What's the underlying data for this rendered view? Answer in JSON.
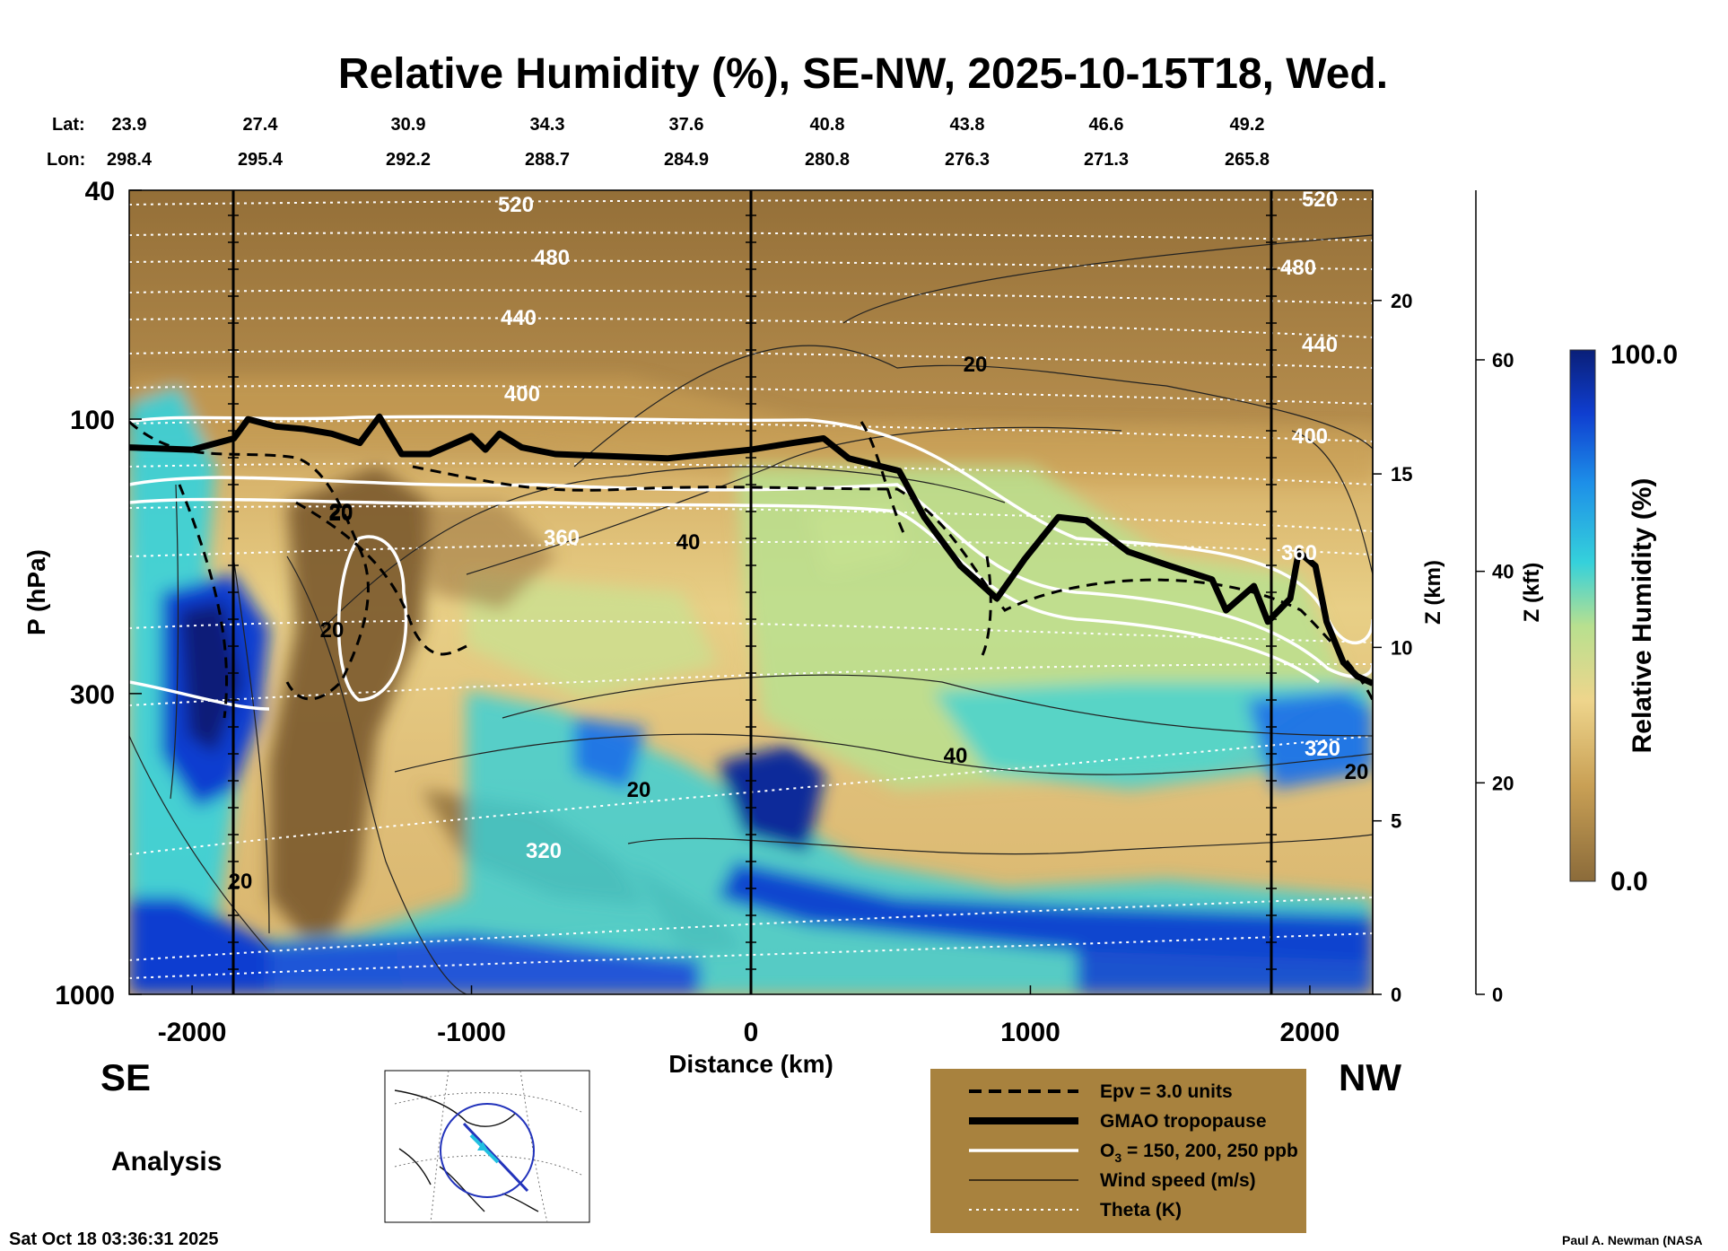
{
  "chart_data": {
    "type": "heatmap",
    "title": "Relative Humidity (%), SE-NW, 2025-10-15T18, Wed.",
    "xlabel": "Distance (km)",
    "ylabel": "P (hPa)",
    "x_ticks": [
      -2000,
      -1000,
      0,
      1000,
      2000
    ],
    "x_range": [
      -2225,
      2225
    ],
    "y_range_hpa": [
      1000,
      40
    ],
    "y_ticks": [
      40,
      100,
      300,
      1000
    ],
    "z_km_label": "Z (km)",
    "z_km_ticks": [
      0,
      5,
      10,
      15,
      20
    ],
    "z_kft_label": "Z (kft)",
    "z_kft_ticks": [
      0,
      20,
      40,
      60
    ],
    "lat_label": "Lat:",
    "lon_label": "Lon:",
    "lat_values": [
      "23.9",
      "27.4",
      "30.9",
      "34.3",
      "37.6",
      "40.8",
      "43.8",
      "46.6",
      "49.2"
    ],
    "lon_values": [
      "298.4",
      "295.4",
      "292.2",
      "288.7",
      "284.9",
      "280.8",
      "276.3",
      "271.3",
      "265.8"
    ],
    "section_left_label": "SE",
    "section_right_label": "NW",
    "colorbar": {
      "label": "Relative Humidity (%)",
      "max": "100.0",
      "min": "0.0"
    },
    "theta_labels": [
      "520",
      "480",
      "440",
      "400",
      "360",
      "320",
      "520",
      "480",
      "440",
      "400",
      "360",
      "320"
    ],
    "wind_labels": [
      "20",
      "40",
      "20",
      "20",
      "20",
      "40",
      "20",
      "20",
      "20"
    ],
    "legend": [
      {
        "style": "dashed",
        "label": "Epv = 3.0 units"
      },
      {
        "style": "thick",
        "label": "GMAO tropopause"
      },
      {
        "style": "white",
        "label": "O",
        "sub": "3",
        "suffix": " = 150, 200, 250 ppb"
      },
      {
        "style": "thin",
        "label": "Wind speed (m/s)"
      },
      {
        "style": "dotted",
        "label": "Theta (K)"
      }
    ],
    "tropopause_hpa": [
      [
        -2225,
        112
      ],
      [
        -2000,
        113
      ],
      [
        -1850,
        108
      ],
      [
        -1800,
        100
      ],
      [
        -1700,
        103
      ],
      [
        -1600,
        104
      ],
      [
        -1500,
        106
      ],
      [
        -1400,
        110
      ],
      [
        -1330,
        99
      ],
      [
        -1250,
        115
      ],
      [
        -1150,
        115
      ],
      [
        -1000,
        107
      ],
      [
        -950,
        113
      ],
      [
        -900,
        106
      ],
      [
        -820,
        112
      ],
      [
        -700,
        115
      ],
      [
        -500,
        116
      ],
      [
        -300,
        117
      ],
      [
        0,
        113
      ],
      [
        150,
        110
      ],
      [
        260,
        108
      ],
      [
        350,
        117
      ],
      [
        530,
        123
      ],
      [
        620,
        148
      ],
      [
        750,
        180
      ],
      [
        880,
        205
      ],
      [
        980,
        175
      ],
      [
        1100,
        148
      ],
      [
        1200,
        150
      ],
      [
        1350,
        170
      ],
      [
        1500,
        180
      ],
      [
        1650,
        190
      ],
      [
        1700,
        215
      ],
      [
        1800,
        195
      ],
      [
        1850,
        225
      ],
      [
        1930,
        205
      ],
      [
        1960,
        170
      ],
      [
        2020,
        180
      ],
      [
        2060,
        225
      ],
      [
        2120,
        265
      ],
      [
        2170,
        280
      ],
      [
        2225,
        288
      ]
    ]
  },
  "analysis_label": "Analysis",
  "timestamp": "Sat Oct 18 03:36:31 2025",
  "credit": "Paul A. Newman (NASA",
  "colors": {
    "brown": "#8b6b3a",
    "tan": "#d6b26a",
    "light": "#eed58c",
    "green": "#b8e08f",
    "cyan": "#35d1db",
    "blue": "#0f4fd8",
    "navy": "#0a1f78",
    "legend_bg": "#a8823e"
  }
}
